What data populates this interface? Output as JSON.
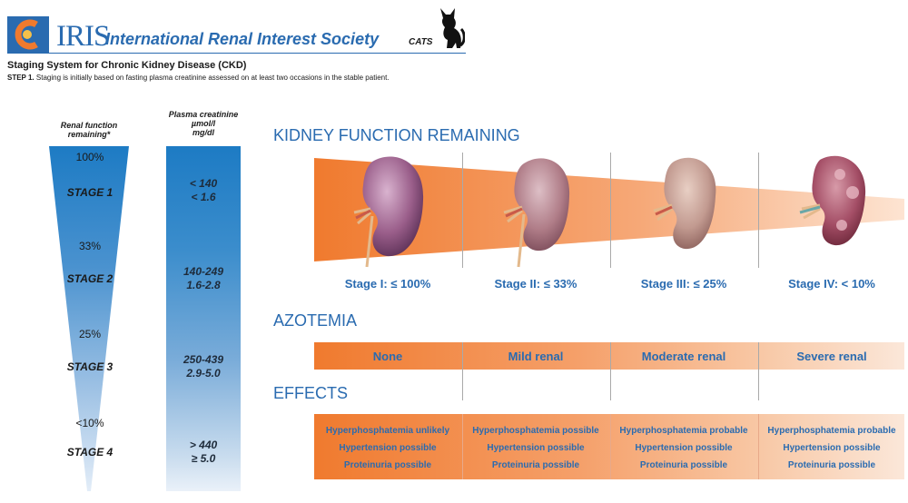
{
  "header": {
    "logo_code": "IRIS",
    "org_name": "International Renal Interest Society",
    "species": "CATS",
    "title": "Staging System for Chronic Kidney Disease (CKD)",
    "step_label": "STEP 1.",
    "step_text": " Staging is initially based on fasting plasma creatinine assessed on at least two occasions in the stable patient.",
    "colors": {
      "brand_blue": "#2a6bb0",
      "orange": "#f07a2e"
    }
  },
  "left": {
    "renal_head": [
      "Renal function",
      "remaining*"
    ],
    "creat_head": [
      "Plasma creatinine",
      "µmol/l",
      "mg/dl"
    ],
    "funnel": [
      {
        "pct": "100%",
        "stage": "STAGE 1"
      },
      {
        "pct": "33%",
        "stage": "STAGE 2"
      },
      {
        "pct": "25%",
        "stage": "STAGE 3"
      },
      {
        "pct": "<10%",
        "stage": "STAGE 4"
      }
    ],
    "creatinine": [
      {
        "umol": "< 140",
        "mg": "< 1.6"
      },
      {
        "umol": "140-249",
        "mg": "1.6-2.8"
      },
      {
        "umol": "250-439",
        "mg": "2.9-5.0"
      },
      {
        "umol": "> 440",
        "mg": "≥ 5.0"
      }
    ]
  },
  "right": {
    "kidney_title": "KIDNEY FUNCTION REMAINING",
    "stages": [
      "Stage I: ≤ 100%",
      "Stage II: ≤ 33%",
      "Stage III: ≤ 25%",
      "Stage IV: < 10%"
    ],
    "azotemia_title": "AZOTEMIA",
    "azotemia": [
      "None",
      "Mild renal",
      "Moderate renal",
      "Severe renal"
    ],
    "effects_title": "EFFECTS",
    "effects": [
      [
        "Hyperphosphatemia unlikely",
        "Hypertension possible",
        "Proteinuria possible"
      ],
      [
        "Hyperphosphatemia possible",
        "Hypertension possible",
        "Proteinuria possible"
      ],
      [
        "Hyperphosphatemia probable",
        "Hypertension possible",
        "Proteinuria possible"
      ],
      [
        "Hyperphosphatemia probable",
        "Hypertension possible",
        "Proteinuria possible"
      ]
    ],
    "kidney_icons": [
      "kidney-healthy-icon",
      "kidney-mild-icon",
      "kidney-moderate-icon",
      "kidney-severe-icon"
    ]
  }
}
